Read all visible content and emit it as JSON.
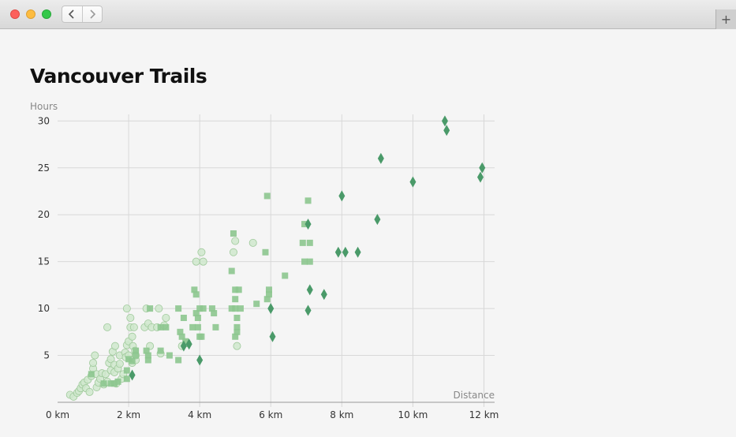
{
  "window": {
    "nav_back_icon": "chevron-left-icon",
    "nav_forward_icon": "chevron-right-icon",
    "new_tab_label": "+"
  },
  "page": {
    "title": "Vancouver Trails"
  },
  "chart_data": {
    "type": "scatter",
    "title": "Vancouver Trails",
    "ylabel": "Hours",
    "xlabel": "Distance",
    "xlim": [
      0,
      12.3
    ],
    "ylim": [
      0,
      30.7
    ],
    "xticks": [
      0,
      2,
      4,
      6,
      8,
      10,
      12
    ],
    "xtick_labels": [
      "0 km",
      "2 km",
      "4 km",
      "6 km",
      "8 km",
      "10 km",
      "12 km"
    ],
    "yticks": [
      5,
      10,
      15,
      20,
      25,
      30
    ],
    "ytick_labels": [
      "5",
      "10",
      "15",
      "20",
      "25",
      "30"
    ],
    "grid": true,
    "series": [
      {
        "marker": "circle",
        "color": "#cfe8cd",
        "stroke": "#9fc99b",
        "points": [
          [
            0.35,
            0.8
          ],
          [
            0.45,
            0.6
          ],
          [
            0.55,
            1.0
          ],
          [
            0.6,
            1.2
          ],
          [
            0.65,
            1.5
          ],
          [
            0.7,
            1.9
          ],
          [
            0.75,
            2.1
          ],
          [
            0.8,
            1.5
          ],
          [
            0.85,
            2.4
          ],
          [
            0.9,
            1.1
          ],
          [
            0.95,
            2.8
          ],
          [
            1.0,
            3.6
          ],
          [
            1.0,
            4.2
          ],
          [
            1.05,
            5.0
          ],
          [
            1.1,
            3.0
          ],
          [
            1.1,
            1.6
          ],
          [
            1.15,
            2.1
          ],
          [
            1.2,
            2.5
          ],
          [
            1.25,
            3.1
          ],
          [
            1.3,
            1.9
          ],
          [
            1.35,
            3.0
          ],
          [
            1.4,
            2.2
          ],
          [
            1.4,
            8.0
          ],
          [
            1.45,
            4.2
          ],
          [
            1.5,
            4.6
          ],
          [
            1.5,
            3.4
          ],
          [
            1.55,
            5.4
          ],
          [
            1.6,
            4.0
          ],
          [
            1.6,
            3.2
          ],
          [
            1.62,
            6.0
          ],
          [
            1.65,
            2.0
          ],
          [
            1.7,
            3.6
          ],
          [
            1.75,
            4.1
          ],
          [
            1.75,
            5.0
          ],
          [
            1.8,
            2.5
          ],
          [
            1.85,
            3.0
          ],
          [
            1.9,
            5.3
          ],
          [
            1.92,
            4.8
          ],
          [
            1.95,
            6.1
          ],
          [
            1.95,
            10.0
          ],
          [
            2.0,
            6.5
          ],
          [
            2.0,
            5.0
          ],
          [
            2.05,
            9.0
          ],
          [
            2.05,
            8.0
          ],
          [
            2.1,
            4.2
          ],
          [
            2.1,
            7.0
          ],
          [
            2.12,
            6.0
          ],
          [
            2.15,
            8.0
          ],
          [
            2.18,
            5.5
          ],
          [
            2.2,
            4.5
          ],
          [
            2.2,
            5.0
          ],
          [
            2.45,
            8.0
          ],
          [
            2.5,
            10.0
          ],
          [
            2.55,
            8.4
          ],
          [
            2.6,
            6.0
          ],
          [
            2.65,
            8.0
          ],
          [
            2.8,
            8.0
          ],
          [
            2.85,
            10.0
          ],
          [
            2.9,
            5.2
          ],
          [
            3.0,
            8.2
          ],
          [
            3.05,
            9.0
          ],
          [
            3.5,
            6.0
          ],
          [
            3.65,
            6.3
          ],
          [
            3.9,
            15.0
          ],
          [
            4.05,
            16.0
          ],
          [
            4.1,
            15.0
          ],
          [
            4.95,
            16.0
          ],
          [
            5.0,
            17.2
          ],
          [
            5.5,
            17.0
          ],
          [
            5.05,
            6.0
          ]
        ]
      },
      {
        "marker": "square",
        "color": "#8dc68f",
        "stroke": "#79b57b",
        "points": [
          [
            0.95,
            3.0
          ],
          [
            1.3,
            2.0
          ],
          [
            1.5,
            2.0
          ],
          [
            1.6,
            2.0
          ],
          [
            1.7,
            2.2
          ],
          [
            1.95,
            2.5
          ],
          [
            1.95,
            3.4
          ],
          [
            2.0,
            4.6
          ],
          [
            2.1,
            4.4
          ],
          [
            2.2,
            5.0
          ],
          [
            2.2,
            5.5
          ],
          [
            2.5,
            5.5
          ],
          [
            2.55,
            5.0
          ],
          [
            2.55,
            4.5
          ],
          [
            2.6,
            10.0
          ],
          [
            2.9,
            8.0
          ],
          [
            2.9,
            5.5
          ],
          [
            3.05,
            8.0
          ],
          [
            3.15,
            5.0
          ],
          [
            3.4,
            4.5
          ],
          [
            3.4,
            10.0
          ],
          [
            3.45,
            7.5
          ],
          [
            3.5,
            7.0
          ],
          [
            3.55,
            9.0
          ],
          [
            3.6,
            6.5
          ],
          [
            3.8,
            8.0
          ],
          [
            3.85,
            12.0
          ],
          [
            3.9,
            11.5
          ],
          [
            3.9,
            9.5
          ],
          [
            3.95,
            9.0
          ],
          [
            3.95,
            8.0
          ],
          [
            4.0,
            10.0
          ],
          [
            4.0,
            7.0
          ],
          [
            4.05,
            7.0
          ],
          [
            4.1,
            10.0
          ],
          [
            4.35,
            10.0
          ],
          [
            4.4,
            9.5
          ],
          [
            4.45,
            8.0
          ],
          [
            4.9,
            14.0
          ],
          [
            4.95,
            18.0
          ],
          [
            4.9,
            10.0
          ],
          [
            5.0,
            12.0
          ],
          [
            5.0,
            11.0
          ],
          [
            5.0,
            10.0
          ],
          [
            5.05,
            9.0
          ],
          [
            5.05,
            7.5
          ],
          [
            5.0,
            7.0
          ],
          [
            5.05,
            8.0
          ],
          [
            5.1,
            12.0
          ],
          [
            5.15,
            10.0
          ],
          [
            5.6,
            10.5
          ],
          [
            5.85,
            16.0
          ],
          [
            5.9,
            22.0
          ],
          [
            5.9,
            11.0
          ],
          [
            5.95,
            11.5
          ],
          [
            5.95,
            12.0
          ],
          [
            6.4,
            13.5
          ],
          [
            6.9,
            17.0
          ],
          [
            6.95,
            19.0
          ],
          [
            6.95,
            15.0
          ],
          [
            7.05,
            21.5
          ],
          [
            7.1,
            17.0
          ],
          [
            7.1,
            15.0
          ]
        ]
      },
      {
        "marker": "diamond",
        "color": "#4a9a69",
        "stroke": "#3a7f56",
        "points": [
          [
            2.1,
            2.9
          ],
          [
            3.55,
            6.0
          ],
          [
            3.7,
            6.2
          ],
          [
            4.0,
            4.5
          ],
          [
            6.0,
            10.0
          ],
          [
            6.05,
            7.0
          ],
          [
            7.05,
            19.0
          ],
          [
            7.05,
            9.8
          ],
          [
            7.1,
            12.0
          ],
          [
            7.5,
            11.5
          ],
          [
            7.9,
            16.0
          ],
          [
            8.0,
            22.0
          ],
          [
            8.1,
            16.0
          ],
          [
            8.45,
            16.0
          ],
          [
            9.0,
            19.5
          ],
          [
            9.1,
            26.0
          ],
          [
            10.0,
            23.5
          ],
          [
            10.9,
            30.0
          ],
          [
            10.95,
            29.0
          ],
          [
            11.9,
            24.0
          ],
          [
            11.95,
            25.0
          ]
        ]
      }
    ]
  }
}
